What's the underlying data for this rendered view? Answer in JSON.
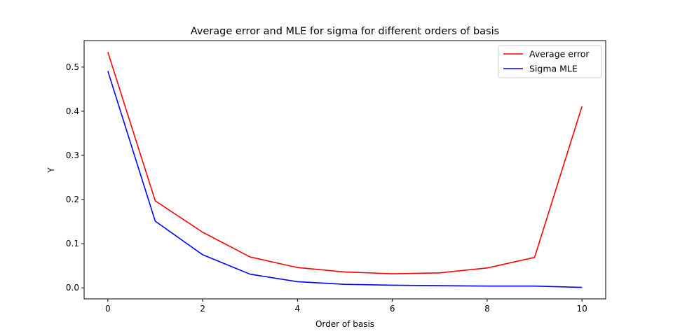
{
  "chart_data": {
    "type": "line",
    "title": "Average error and MLE for sigma for different orders of basis",
    "xlabel": "Order of basis",
    "ylabel": "Y",
    "x": [
      0,
      1,
      2,
      3,
      4,
      5,
      6,
      7,
      8,
      9,
      10
    ],
    "xlim": [
      -0.5,
      10.5
    ],
    "ylim": [
      -0.025,
      0.56
    ],
    "xticks": [
      0,
      2,
      4,
      6,
      8,
      10
    ],
    "yticks": [
      0.0,
      0.1,
      0.2,
      0.3,
      0.4,
      0.5
    ],
    "grid": false,
    "legend_position": "top-right",
    "series": [
      {
        "name": "Average error",
        "color": "#ff0000",
        "values": [
          0.534,
          0.197,
          0.126,
          0.07,
          0.046,
          0.036,
          0.032,
          0.034,
          0.045,
          0.069,
          0.411
        ]
      },
      {
        "name": "Sigma MLE",
        "color": "#0000ff",
        "values": [
          0.491,
          0.151,
          0.075,
          0.031,
          0.014,
          0.008,
          0.006,
          0.005,
          0.004,
          0.004,
          0.001
        ]
      }
    ]
  }
}
